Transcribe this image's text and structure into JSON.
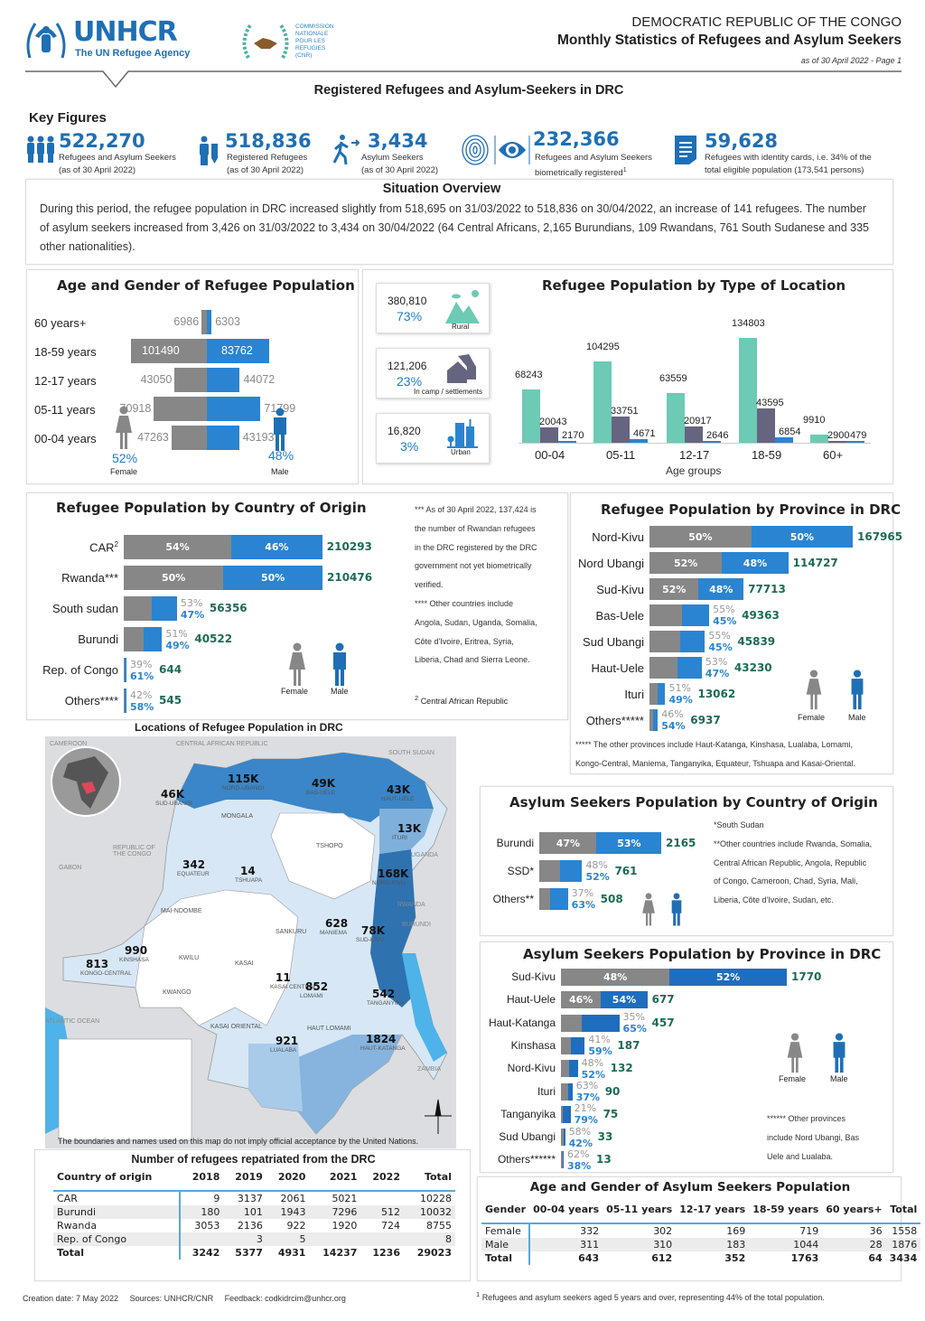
{
  "header": {
    "logo_text": "UNHCR",
    "logo_tagline": "The UN Refugee Agency",
    "cnr_logo_text": [
      "COMMISSION",
      "NATIONALE",
      "POUR LES",
      "REFUGIES",
      "(CNR)"
    ],
    "country": "DEMOCRATIC REPUBLIC OF THE CONGO",
    "title": "Monthly Statistics of Refugees and Asylum Seekers",
    "date_page": "as of 30 April 2022 - Page 1",
    "subtitle": "Registered Refugees and Asylum-Seekers in DRC"
  },
  "key_figures": {
    "heading": "Key Figures",
    "items": [
      {
        "icon": "people-group-icon",
        "value": "522,270",
        "line1": "Refugees and Asylum Seekers",
        "line2": "(as of 30 April 2022)"
      },
      {
        "icon": "refugee-registration-icon",
        "value": "518,836",
        "line1": "Registered Refugees",
        "line2": "(as of 30 April 2022)"
      },
      {
        "icon": "walking-person-icon",
        "value": "3,434",
        "line1": "Asylum Seekers",
        "line2": "(as of 30 April 2022)"
      },
      {
        "icon": "biometric-eye-icon",
        "value": "232,366",
        "line1": "Refugees and Asylum Seekers",
        "line2": "biometrically registered",
        "sup": "1"
      },
      {
        "icon": "identity-document-icon",
        "value": "59,628",
        "line1": "Refugees with identity cards, i.e. 34% of the",
        "line2": "total eligible population (173,541 persons)"
      }
    ]
  },
  "situation": {
    "title": "Situation Overview",
    "text": "During this period, the refugee population in DRC increased slightly from 518,695 on 31/03/2022 to 518,836 on 30/04/2022, an increase of 141 refugees. The number of asylum seekers increased from 3,426 on 31/03/2022 to 3,434 on 30/04/2022 (64 Central Africans, 2,165 Burundians, 109 Rwandans, 761 South Sudanese and 335 other nationalities)."
  },
  "age_gender": {
    "title": "Age and Gender of Refugee Population",
    "rows": [
      {
        "label": "60 years+",
        "female": "6986",
        "male": "6303"
      },
      {
        "label": "18-59 years",
        "female": "101490",
        "male": "83762"
      },
      {
        "label": "12-17 years",
        "female": "43050",
        "male": "44072"
      },
      {
        "label": "05-11 years",
        "female": "70918",
        "male": "71799"
      },
      {
        "label": "00-04 years",
        "female": "47263",
        "male": "43193"
      }
    ],
    "female_pct": "52%",
    "male_pct": "48%",
    "female_label": "Female",
    "male_label": "Male"
  },
  "location": {
    "title": "Refugee Population by Type of Location",
    "cards": [
      {
        "value": "380,810",
        "pct": "73%",
        "label": "Rural",
        "icon": "mountain-icon",
        "color": "#6dcab4"
      },
      {
        "value": "121,206",
        "pct": "23%",
        "label": "In camp / settlements",
        "icon": "shelter-icon",
        "color": "#66657f"
      },
      {
        "value": "16,820",
        "pct": "3%",
        "label": "Urban",
        "icon": "city-buildings-icon",
        "color": "#2a84d2"
      }
    ],
    "chart_data": {
      "type": "bar",
      "title": "Refugee Population by Type of Location",
      "xlabel": "Age groups",
      "categories": [
        "00-04",
        "05-11",
        "12-17",
        "18-59",
        "60+"
      ],
      "series": [
        {
          "name": "Rural",
          "color": "#6dcab4",
          "values": [
            "68243",
            "104295",
            "63559",
            "134803",
            "9910"
          ]
        },
        {
          "name": "In camp / settlements",
          "color": "#66657f",
          "values": [
            "20043",
            "33751",
            "20917",
            "43595",
            "2900"
          ]
        },
        {
          "name": "Urban",
          "color": "#2a84d2",
          "values": [
            "2170",
            "4671",
            "2646",
            "6854",
            "479"
          ]
        }
      ],
      "ylim": [
        0,
        140000
      ]
    }
  },
  "origin": {
    "title": "Refugee Population by Country of Origin",
    "rows": [
      {
        "label": "CAR",
        "sup": "2",
        "female_pct": "54%",
        "male_pct": "46%",
        "total": "210293"
      },
      {
        "label": "Rwanda***",
        "female_pct": "50%",
        "male_pct": "50%",
        "total": "210476"
      },
      {
        "label": "South sudan",
        "female_pct": "53%",
        "male_pct": "47%",
        "total": "56356"
      },
      {
        "label": "Burundi",
        "female_pct": "51%",
        "male_pct": "49%",
        "total": "40522"
      },
      {
        "label": "Rep. of Congo",
        "female_pct": "39%",
        "male_pct": "61%",
        "total": "644"
      },
      {
        "label": "Others****",
        "female_pct": "42%",
        "male_pct": "58%",
        "total": "545"
      }
    ],
    "notes": [
      "*** As of 30 April 2022, 137,424 is",
      "the number of Rwandan refugees",
      "in the DRC registered by the DRC",
      "government not yet biometrically",
      "verified.",
      "**** Other countries include",
      "Angola, Sudan, Uganda, Somalia,",
      "Côte d'Ivoire, Eritrea, Syria,",
      "Liberia, Chad and Sierra Leone."
    ],
    "footnote_sup": "2",
    "footnote": "Central African Republic",
    "female_label": "Female",
    "male_label": "Male"
  },
  "province": {
    "title": "Refugee Population by Province in DRC",
    "rows": [
      {
        "label": "Nord-Kivu",
        "female_pct": "50%",
        "male_pct": "50%",
        "total": "167965"
      },
      {
        "label": "Nord Ubangi",
        "female_pct": "52%",
        "male_pct": "48%",
        "total": "114727"
      },
      {
        "label": "Sud-Kivu",
        "female_pct": "52%",
        "male_pct": "48%",
        "total": "77713"
      },
      {
        "label": "Bas-Uele",
        "female_pct": "55%",
        "male_pct": "45%",
        "total": "49363"
      },
      {
        "label": "Sud Ubangi",
        "female_pct": "55%",
        "male_pct": "45%",
        "total": "45839"
      },
      {
        "label": "Haut-Uele",
        "female_pct": "53%",
        "male_pct": "47%",
        "total": "43230"
      },
      {
        "label": "Ituri",
        "female_pct": "51%",
        "male_pct": "49%",
        "total": "13062"
      },
      {
        "label": "Others*****",
        "female_pct": "46%",
        "male_pct": "54%",
        "total": "6937"
      }
    ],
    "notes": [
      "***** The other provinces include Haut-Katanga, Kinshasa, Lualaba, Lomami,",
      "Kongo-Central, Maniema, Tanganyika, Equateur, Tshuapa and Kasai-Oriental."
    ],
    "female_label": "Female",
    "male_label": "Male"
  },
  "map": {
    "title": "Locations of Refugee Population in DRC",
    "disclaimer": "The boundaries and names used on this map do not imply official acceptance by the United Nations.",
    "countries": [
      "CAMEROON",
      "CENTRAL AFRICAN REPUBLIC",
      "SOUTH SUDAN",
      "REPUBLIC OF THE CONGO",
      "GABON",
      "UGANDA",
      "RWANDA",
      "BURUNDI",
      "UNITED REPUBLIC OF TANZANIA",
      "ZAMBIA",
      "ATLANTIC OCEAN"
    ],
    "values": [
      {
        "value": "115K",
        "name": "NORD-UBANGI"
      },
      {
        "value": "46K",
        "name": "SUD-UBANGI"
      },
      {
        "value": "49K",
        "name": "BAS-UELE"
      },
      {
        "value": "43K",
        "name": "HAUT-UELE"
      },
      {
        "value": "13K",
        "name": "ITURI"
      },
      {
        "value": "168K",
        "name": "NORD-KIVU"
      },
      {
        "value": "78K",
        "name": "SUD-KIVU"
      },
      {
        "value": "342",
        "name": "EQUATEUR"
      },
      {
        "value": "14",
        "name": "TSHUAPA"
      },
      {
        "value": "628",
        "name": "MANIEMA"
      },
      {
        "value": "990",
        "name": "KINSHASA"
      },
      {
        "value": "813",
        "name": "KONGO-CENTRAL"
      },
      {
        "value": "11",
        "name": "KASAI CENTRAL"
      },
      {
        "value": "852",
        "name": "LOMAMI"
      },
      {
        "value": "542",
        "name": "TANGANYIKA"
      },
      {
        "value": "921",
        "name": "LUALABA"
      },
      {
        "value": "1824",
        "name": "HAUT-KATANGA"
      }
    ],
    "other_provinces": [
      "MONGALA",
      "TSHOPO",
      "MAI-NDOMBE",
      "SANKURU",
      "KWILU",
      "KASAI",
      "KWANGO",
      "KASAI ORIENTAL",
      "HAUT LOMAMI"
    ]
  },
  "asylum_origin": {
    "title": "Asylum Seekers Population by Country of Origin",
    "rows": [
      {
        "label": "Burundi",
        "female_pct": "47%",
        "male_pct": "53%",
        "total": "2165"
      },
      {
        "label": "SSD*",
        "female_pct": "48%",
        "male_pct": "52%",
        "total": "761"
      },
      {
        "label": "Others**",
        "female_pct": "37%",
        "male_pct": "63%",
        "total": "508"
      }
    ],
    "notes": [
      "*South Sudan",
      "**Other countries include Rwanda, Somalia,",
      "Central African Republic, Angola, Republic",
      "of Congo, Cameroon, Chad, Syria, Mali,",
      "Liberia, Côte d'Ivoire, Sudan, etc."
    ]
  },
  "asylum_province": {
    "title": "Asylum Seekers Population by Province in DRC",
    "rows": [
      {
        "label": "Sud-Kivu",
        "female_pct": "48%",
        "male_pct": "52%",
        "total": "1770"
      },
      {
        "label": "Haut-Uele",
        "female_pct": "46%",
        "male_pct": "54%",
        "total": "677"
      },
      {
        "label": "Haut-Katanga",
        "female_pct": "35%",
        "male_pct": "65%",
        "total": "457"
      },
      {
        "label": "Kinshasa",
        "female_pct": "41%",
        "male_pct": "59%",
        "total": "187"
      },
      {
        "label": "Nord-Kivu",
        "female_pct": "48%",
        "male_pct": "52%",
        "total": "132"
      },
      {
        "label": "Ituri",
        "female_pct": "63%",
        "male_pct": "37%",
        "total": "90"
      },
      {
        "label": "Tanganyika",
        "female_pct": "21%",
        "male_pct": "79%",
        "total": "75"
      },
      {
        "label": "Sud Ubangi",
        "female_pct": "58%",
        "male_pct": "42%",
        "total": "33"
      },
      {
        "label": "Others******",
        "female_pct": "62%",
        "male_pct": "38%",
        "total": "13"
      }
    ],
    "notes": [
      "****** Other provinces",
      "include Nord Ubangi, Bas",
      "Uele and Lualaba."
    ],
    "female_label": "Female",
    "male_label": "Male"
  },
  "repatriated": {
    "title": "Number of refugees repatriated from the DRC",
    "headers": [
      "Country of origin",
      "2018",
      "2019",
      "2020",
      "2021",
      "2022",
      "Total"
    ],
    "rows": [
      [
        "CAR",
        "9",
        "3137",
        "2061",
        "5021",
        "",
        "10228"
      ],
      [
        "Burundi",
        "180",
        "101",
        "1943",
        "7296",
        "512",
        "10032"
      ],
      [
        "Rwanda",
        "3053",
        "2136",
        "922",
        "1920",
        "724",
        "8755"
      ],
      [
        "Rep. of Congo",
        "",
        "3",
        "5",
        "",
        "",
        "8"
      ],
      [
        "Total",
        "3242",
        "5377",
        "4931",
        "14237",
        "1236",
        "29023"
      ]
    ]
  },
  "asylum_age": {
    "title": "Age and Gender of Asylum Seekers Population",
    "headers": [
      "Gender",
      "00-04 years",
      "05-11 years",
      "12-17 years",
      "18-59 years",
      "60 years+",
      "Total"
    ],
    "rows": [
      [
        "Female",
        "332",
        "302",
        "169",
        "719",
        "36",
        "1558"
      ],
      [
        "Male",
        "311",
        "310",
        "183",
        "1044",
        "28",
        "1876"
      ],
      [
        "Total",
        "643",
        "612",
        "352",
        "1763",
        "64",
        "3434"
      ]
    ]
  },
  "footer": {
    "created": "Creation date: 7 May 2022",
    "sources": "Sources: UNHCR/CNR",
    "feedback": "Feedback: codkidrcim@unhcr.org",
    "footnote_sup": "1",
    "footnote": "Refugees and asylum seekers aged 5 years and over, representing 44% of the total population."
  },
  "colors": {
    "female": "#878787",
    "male": "#2a84d2",
    "total": "#1c6b55",
    "brand": "#1f6fb5"
  }
}
